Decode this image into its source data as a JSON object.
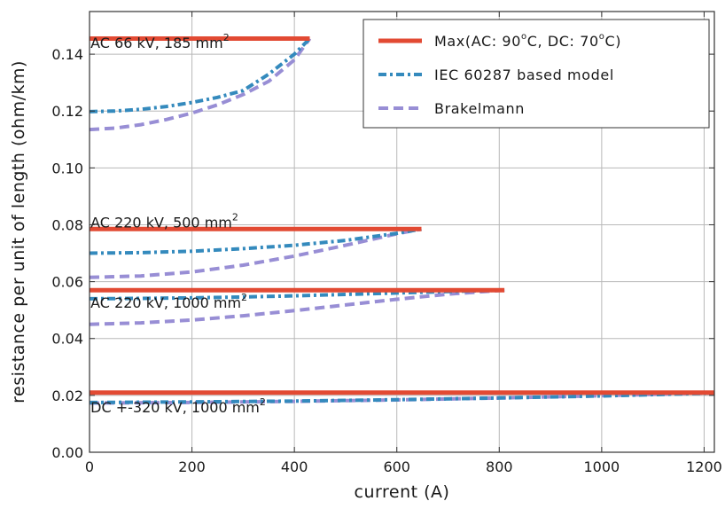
{
  "chart_data": {
    "type": "line",
    "xlabel": "current (A)",
    "ylabel": "resistance per unit of length (ohm/km)",
    "xlim": [
      0,
      1220
    ],
    "ylim": [
      0,
      0.155
    ],
    "xticks": [
      0,
      200,
      400,
      600,
      800,
      1000,
      1200
    ],
    "yticks": [
      0.0,
      0.02,
      0.04,
      0.06,
      0.08,
      0.1,
      0.12,
      0.14
    ],
    "ytick_labels": [
      "0.00",
      "0.02",
      "0.04",
      "0.06",
      "0.08",
      "0.10",
      "0.12",
      "0.14"
    ],
    "xtick_labels": [
      "0",
      "200",
      "400",
      "600",
      "800",
      "1000",
      "1200"
    ],
    "grid": true,
    "legend_position": "top-right",
    "legend": [
      {
        "key": "max",
        "label_parts": [
          "Max(AC: 90",
          "o",
          "C, DC: 70",
          "o",
          "C)"
        ],
        "color": "#e24a33",
        "style": "solid"
      },
      {
        "key": "iec",
        "label": "IEC 60287 based model",
        "color": "#348abd",
        "style": "dashdot"
      },
      {
        "key": "brak",
        "label": "Brakelmann",
        "color": "#988ed5",
        "style": "dashed"
      }
    ],
    "cables": [
      {
        "label": "AC 66 kV, 185 mm",
        "label_sup": "2",
        "label_x": 2,
        "label_y": 0.1422,
        "max": {
          "x": [
            0,
            430
          ],
          "y": [
            0.1455,
            0.1455
          ]
        },
        "iec": {
          "x": [
            0,
            50,
            100,
            150,
            200,
            250,
            300,
            350,
            400,
            430
          ],
          "y": [
            0.1198,
            0.12,
            0.1206,
            0.1216,
            0.123,
            0.1248,
            0.1272,
            0.133,
            0.14,
            0.1455
          ]
        },
        "brak": {
          "x": [
            0,
            50,
            100,
            150,
            200,
            250,
            300,
            350,
            400,
            430
          ],
          "y": [
            0.1135,
            0.114,
            0.1152,
            0.117,
            0.1193,
            0.1222,
            0.1258,
            0.1305,
            0.138,
            0.1455
          ]
        }
      },
      {
        "label": "AC 220 kV, 500 mm",
        "label_sup": "2",
        "label_x": 2,
        "label_y": 0.079,
        "max": {
          "x": [
            0,
            648
          ],
          "y": [
            0.0785,
            0.0785
          ]
        },
        "iec": {
          "x": [
            0,
            100,
            200,
            300,
            400,
            500,
            600,
            648
          ],
          "y": [
            0.07,
            0.0702,
            0.0707,
            0.0716,
            0.0728,
            0.0745,
            0.077,
            0.0785
          ]
        },
        "brak": {
          "x": [
            0,
            100,
            200,
            300,
            400,
            500,
            600,
            648
          ],
          "y": [
            0.0615,
            0.062,
            0.0634,
            0.0658,
            0.069,
            0.0728,
            0.0768,
            0.0785
          ]
        }
      },
      {
        "label": "AC 220 kV, 1000 mm",
        "label_sup": "2",
        "label_x": 2,
        "label_y": 0.0508,
        "max": {
          "x": [
            0,
            810
          ],
          "y": [
            0.057,
            0.057
          ]
        },
        "iec": {
          "x": [
            0,
            100,
            200,
            300,
            400,
            500,
            600,
            700,
            810
          ],
          "y": [
            0.054,
            0.0541,
            0.0543,
            0.0546,
            0.055,
            0.0555,
            0.056,
            0.0565,
            0.057
          ]
        },
        "brak": {
          "x": [
            0,
            100,
            200,
            300,
            400,
            500,
            600,
            700,
            810
          ],
          "y": [
            0.045,
            0.0455,
            0.0465,
            0.048,
            0.0498,
            0.0518,
            0.0538,
            0.0556,
            0.057
          ]
        }
      },
      {
        "label": "DC +-320 kV, 1000 mm",
        "label_sup": "2",
        "label_x": 2,
        "label_y": 0.014,
        "max": {
          "x": [
            0,
            1220
          ],
          "y": [
            0.021,
            0.021
          ]
        },
        "iec": {
          "x": [
            0,
            200,
            400,
            600,
            800,
            1000,
            1220
          ],
          "y": [
            0.0175,
            0.0177,
            0.018,
            0.0185,
            0.0191,
            0.0198,
            0.0208
          ]
        },
        "brak": {
          "x": [
            0,
            200,
            400,
            600,
            800,
            1000,
            1220
          ],
          "y": [
            0.0173,
            0.0175,
            0.0179,
            0.0184,
            0.0191,
            0.0199,
            0.0209
          ]
        }
      }
    ]
  }
}
